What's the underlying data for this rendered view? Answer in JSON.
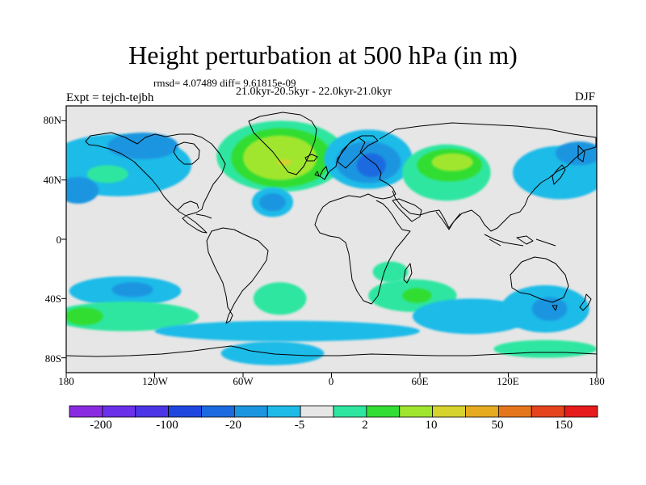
{
  "title": "Height perturbation at 500 hPa (in m)",
  "stats_text": "rmsd= 4.07489 diff= 9.61815e-09",
  "period_text": "21.0kyr-20.5kyr - 22.0kyr-21.0kyr",
  "experiment_text": "Expt = tejch-tejbh",
  "season": "DJF",
  "map": {
    "projection": "cylindrical-equidistant",
    "lon_range": [
      -180,
      180
    ],
    "lat_range": [
      -90,
      90
    ],
    "background_color": "#e6e6e6",
    "grid": false,
    "coastlines": true,
    "lat_labels": [
      {
        "lat": 80,
        "text": "80N"
      },
      {
        "lat": 40,
        "text": "40N"
      },
      {
        "lat": 0,
        "text": "0"
      },
      {
        "lat": -40,
        "text": "40S"
      },
      {
        "lat": -80,
        "text": "80S"
      }
    ],
    "lon_labels": [
      {
        "lon": -180,
        "text": "180"
      },
      {
        "lon": -120,
        "text": "120W"
      },
      {
        "lon": -60,
        "text": "60W"
      },
      {
        "lon": 0,
        "text": "0"
      },
      {
        "lon": 60,
        "text": "60E"
      },
      {
        "lon": 120,
        "text": "120E"
      },
      {
        "lon": 180,
        "text": "180"
      }
    ]
  },
  "colorbar": {
    "colors": [
      "#8a2be2",
      "#6a30ea",
      "#4b35e6",
      "#1f47e0",
      "#1c6ae0",
      "#1c95e0",
      "#1fbbe8",
      "#e6e6e6",
      "#2ee6a0",
      "#33dd33",
      "#a0e62e",
      "#d6d22e",
      "#e6ab1f",
      "#e6761c",
      "#e6441c",
      "#e61c1c"
    ],
    "labels": [
      {
        "boundary": 1,
        "text": "-200"
      },
      {
        "boundary": 3,
        "text": "-100"
      },
      {
        "boundary": 5,
        "text": "-20"
      },
      {
        "boundary": 7,
        "text": "-5"
      },
      {
        "boundary": 9,
        "text": "2"
      },
      {
        "boundary": 11,
        "text": "10"
      },
      {
        "boundary": 13,
        "text": "50"
      },
      {
        "boundary": 15,
        "text": "150"
      }
    ]
  },
  "fields": [
    {
      "name": "na-green-outer",
      "color": "#2ee6a0",
      "lon": -34,
      "lat": 56,
      "rx_deg": 44,
      "ry_deg": 24
    },
    {
      "name": "na-green",
      "color": "#33dd33",
      "lon": -34,
      "lat": 55,
      "rx_deg": 34,
      "ry_deg": 20
    },
    {
      "name": "na-yellow",
      "color": "#a0e62e",
      "lon": -35,
      "lat": 55,
      "rx_deg": 25,
      "ry_deg": 15
    },
    {
      "name": "na-orange",
      "color": "#d6d22e",
      "lon": -32,
      "lat": 52,
      "rx_deg": 5,
      "ry_deg": 2
    },
    {
      "name": "ne-pacific-blue",
      "color": "#1fbbe8",
      "lon": -145,
      "lat": 50,
      "rx_deg": 50,
      "ry_deg": 21
    },
    {
      "name": "ne-pacific-blue-mid",
      "color": "#1c95e0",
      "lon": -128,
      "lat": 63,
      "rx_deg": 24,
      "ry_deg": 9
    },
    {
      "name": "nw-blue",
      "color": "#1c95e0",
      "lon": -172,
      "lat": 33,
      "rx_deg": 14,
      "ry_deg": 9
    },
    {
      "name": "pacific-green",
      "color": "#2ee6a0",
      "lon": -152,
      "lat": 44,
      "rx_deg": 14,
      "ry_deg": 6
    },
    {
      "name": "atl-blue",
      "color": "#1fbbe8",
      "lon": -40,
      "lat": 25,
      "rx_deg": 14,
      "ry_deg": 10
    },
    {
      "name": "atl-blue-mid",
      "color": "#1c95e0",
      "lon": -40,
      "lat": 25,
      "rx_deg": 9,
      "ry_deg": 6
    },
    {
      "name": "europe-blue",
      "color": "#1fbbe8",
      "lon": 25,
      "lat": 54,
      "rx_deg": 30,
      "ry_deg": 20
    },
    {
      "name": "europe-blue-mid",
      "color": "#1c95e0",
      "lon": 25,
      "lat": 52,
      "rx_deg": 22,
      "ry_deg": 14
    },
    {
      "name": "europe-blue-core",
      "color": "#1c6ae0",
      "lon": 27,
      "lat": 50,
      "rx_deg": 10,
      "ry_deg": 8
    },
    {
      "name": "siberia-green-outer",
      "color": "#2ee6a0",
      "lon": 78,
      "lat": 45,
      "rx_deg": 30,
      "ry_deg": 19
    },
    {
      "name": "siberia-green",
      "color": "#33dd33",
      "lon": 80,
      "lat": 50,
      "rx_deg": 22,
      "ry_deg": 11
    },
    {
      "name": "siberia-yellow",
      "color": "#a0e62e",
      "lon": 82,
      "lat": 52,
      "rx_deg": 14,
      "ry_deg": 6
    },
    {
      "name": "asia-blue",
      "color": "#1fbbe8",
      "lon": 155,
      "lat": 45,
      "rx_deg": 32,
      "ry_deg": 18
    },
    {
      "name": "asia-blue-mid",
      "color": "#1c95e0",
      "lon": 168,
      "lat": 58,
      "rx_deg": 16,
      "ry_deg": 8
    },
    {
      "name": "south-pacific-blue",
      "color": "#1fbbe8",
      "lon": -140,
      "lat": -35,
      "rx_deg": 38,
      "ry_deg": 10
    },
    {
      "name": "south-pacific-blue-mid",
      "color": "#1c95e0",
      "lon": -135,
      "lat": -34,
      "rx_deg": 14,
      "ry_deg": 5
    },
    {
      "name": "south-pacific-green",
      "color": "#2ee6a0",
      "lon": -140,
      "lat": -52,
      "rx_deg": 50,
      "ry_deg": 10
    },
    {
      "name": "south-pacific-green-mid",
      "color": "#33dd33",
      "lon": -168,
      "lat": -52,
      "rx_deg": 13,
      "ry_deg": 6
    },
    {
      "name": "south-atl-green",
      "color": "#2ee6a0",
      "lon": -35,
      "lat": -40,
      "rx_deg": 18,
      "ry_deg": 11
    },
    {
      "name": "south-blue-band",
      "color": "#1fbbe8",
      "lon": -30,
      "lat": -62,
      "rx_deg": 90,
      "ry_deg": 7
    },
    {
      "name": "antarctic-blue",
      "color": "#1fbbe8",
      "lon": -40,
      "lat": -77,
      "rx_deg": 35,
      "ry_deg": 8
    },
    {
      "name": "indian-green",
      "color": "#2ee6a0",
      "lon": 55,
      "lat": -38,
      "rx_deg": 30,
      "ry_deg": 11
    },
    {
      "name": "indian-green-mid",
      "color": "#33dd33",
      "lon": 58,
      "lat": -38,
      "rx_deg": 10,
      "ry_deg": 5
    },
    {
      "name": "madagascar-green",
      "color": "#2ee6a0",
      "lon": 40,
      "lat": -22,
      "rx_deg": 12,
      "ry_deg": 7
    },
    {
      "name": "south-indian-blue",
      "color": "#1fbbe8",
      "lon": 95,
      "lat": -52,
      "rx_deg": 40,
      "ry_deg": 12
    },
    {
      "name": "australia-blue",
      "color": "#1fbbe8",
      "lon": 145,
      "lat": -47,
      "rx_deg": 30,
      "ry_deg": 16
    },
    {
      "name": "australia-blue-mid",
      "color": "#1c95e0",
      "lon": 148,
      "lat": -47,
      "rx_deg": 12,
      "ry_deg": 8
    },
    {
      "name": "antarctic-green-east",
      "color": "#2ee6a0",
      "lon": 145,
      "lat": -74,
      "rx_deg": 35,
      "ry_deg": 6
    }
  ]
}
